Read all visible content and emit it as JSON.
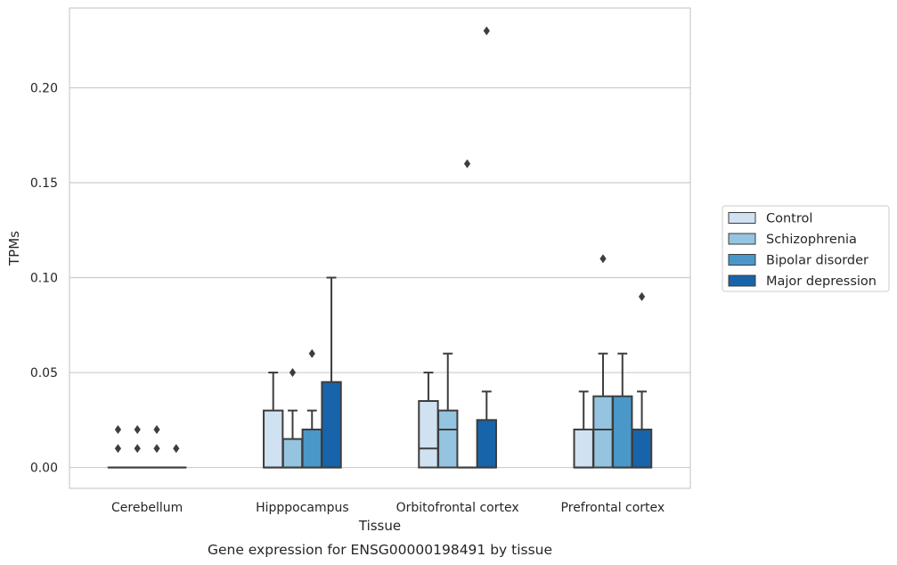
{
  "caption": "Gene expression for ENSG00000198491 by tissue",
  "chart_data": {
    "type": "box",
    "title": "",
    "xlabel": "Tissue",
    "ylabel": "TPMs",
    "ylim": [
      -0.011,
      0.242
    ],
    "yticks": [
      0.0,
      0.05,
      0.1,
      0.15,
      0.2
    ],
    "ytick_labels": [
      "0.00",
      "0.05",
      "0.10",
      "0.15",
      "0.20"
    ],
    "grid": "horizontal",
    "legend_position": "right",
    "categories": [
      "Cerebellum",
      "Hipppocampus",
      "Orbitofrontal cortex",
      "Prefrontal cortex"
    ],
    "series": [
      {
        "name": "Control",
        "color": "#d0e1f2",
        "boxes": [
          {
            "whislo": 0.0,
            "q1": 0.0,
            "med": 0.0,
            "q3": 0.0,
            "whishi": 0.0,
            "fliers": [
              0.01,
              0.02
            ]
          },
          {
            "whislo": 0.0,
            "q1": 0.0,
            "med": 0.0,
            "q3": 0.03,
            "whishi": 0.05,
            "fliers": []
          },
          {
            "whislo": 0.0,
            "q1": 0.0,
            "med": 0.01,
            "q3": 0.035,
            "whishi": 0.05,
            "fliers": []
          },
          {
            "whislo": 0.0,
            "q1": 0.0,
            "med": 0.0,
            "q3": 0.02,
            "whishi": 0.04,
            "fliers": []
          }
        ]
      },
      {
        "name": "Schizophrenia",
        "color": "#94c4df",
        "boxes": [
          {
            "whislo": 0.0,
            "q1": 0.0,
            "med": 0.0,
            "q3": 0.0,
            "whishi": 0.0,
            "fliers": [
              0.01,
              0.02
            ]
          },
          {
            "whislo": 0.0,
            "q1": 0.0,
            "med": 0.0,
            "q3": 0.015,
            "whishi": 0.03,
            "fliers": [
              0.05
            ]
          },
          {
            "whislo": 0.0,
            "q1": 0.0,
            "med": 0.02,
            "q3": 0.03,
            "whishi": 0.06,
            "fliers": []
          },
          {
            "whislo": 0.0,
            "q1": 0.0,
            "med": 0.02,
            "q3": 0.0375,
            "whishi": 0.06,
            "fliers": [
              0.11
            ]
          }
        ]
      },
      {
        "name": "Bipolar disorder",
        "color": "#4a98c9",
        "boxes": [
          {
            "whislo": 0.0,
            "q1": 0.0,
            "med": 0.0,
            "q3": 0.0,
            "whishi": 0.0,
            "fliers": [
              0.01,
              0.02
            ]
          },
          {
            "whislo": 0.0,
            "q1": 0.0,
            "med": 0.0,
            "q3": 0.02,
            "whishi": 0.03,
            "fliers": [
              0.06
            ]
          },
          {
            "whislo": 0.0,
            "q1": 0.0,
            "med": 0.0,
            "q3": 0.0,
            "whishi": 0.0,
            "fliers": [
              0.16
            ]
          },
          {
            "whislo": 0.0,
            "q1": 0.0,
            "med": 0.0,
            "q3": 0.0375,
            "whishi": 0.06,
            "fliers": []
          }
        ]
      },
      {
        "name": "Major depression",
        "color": "#1764ab",
        "boxes": [
          {
            "whislo": 0.0,
            "q1": 0.0,
            "med": 0.0,
            "q3": 0.0,
            "whishi": 0.0,
            "fliers": [
              0.01
            ]
          },
          {
            "whislo": 0.0,
            "q1": 0.0,
            "med": 0.0,
            "q3": 0.045,
            "whishi": 0.1,
            "fliers": []
          },
          {
            "whislo": 0.0,
            "q1": 0.0,
            "med": 0.0,
            "q3": 0.025,
            "whishi": 0.04,
            "fliers": [
              0.23
            ]
          },
          {
            "whislo": 0.0,
            "q1": 0.0,
            "med": 0.0,
            "q3": 0.02,
            "whishi": 0.04,
            "fliers": [
              0.09
            ]
          }
        ]
      }
    ]
  }
}
